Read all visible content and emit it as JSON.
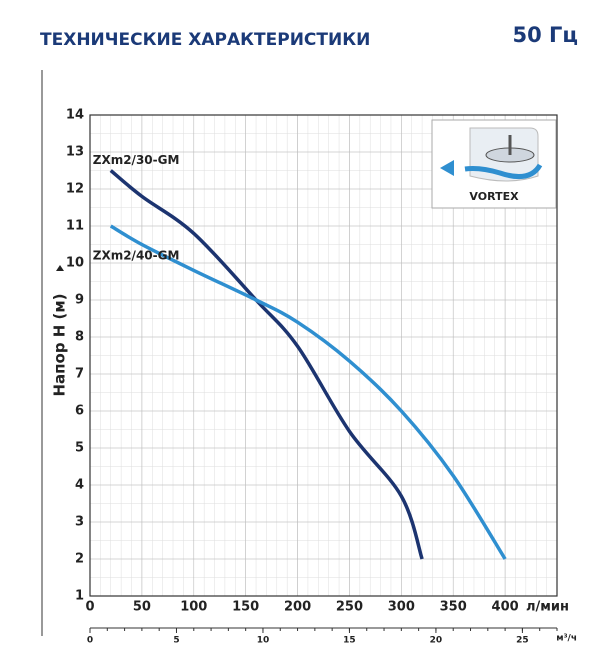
{
  "chart_data": {
    "type": "line",
    "title": "ТЕХНИЧЕСКИЕ ХАРАКТЕРИСТИКИ",
    "subtitle": "50 Гц",
    "y_label": "Напор H  (м)",
    "x_label": "л/мин",
    "x2_label": "м³/ч",
    "inset_label": "VORTEX",
    "xlim": [
      0,
      450
    ],
    "xticks": [
      0,
      50,
      100,
      150,
      200,
      250,
      300,
      350,
      400
    ],
    "ylim": [
      1,
      14
    ],
    "yticks": [
      1,
      2,
      3,
      4,
      5,
      6,
      7,
      8,
      9,
      10,
      11,
      12,
      13,
      14
    ],
    "x2lim": [
      0,
      27
    ],
    "x2ticks": [
      0,
      5,
      10,
      15,
      20,
      25
    ],
    "grid": true,
    "series": [
      {
        "name": "ZXm2/30-GM",
        "color": "#1c3470",
        "x": [
          20,
          50,
          100,
          160,
          200,
          250,
          300,
          320
        ],
        "values": [
          12.5,
          11.8,
          10.8,
          9.0,
          7.75,
          5.45,
          3.7,
          2.0
        ]
      },
      {
        "name": "ZXm2/40-GM",
        "color": "#2f8fd0",
        "x": [
          20,
          50,
          100,
          160,
          200,
          250,
          300,
          350,
          400
        ],
        "values": [
          11.0,
          10.5,
          9.8,
          9.0,
          8.4,
          7.35,
          6.0,
          4.25,
          2.0
        ]
      }
    ]
  }
}
